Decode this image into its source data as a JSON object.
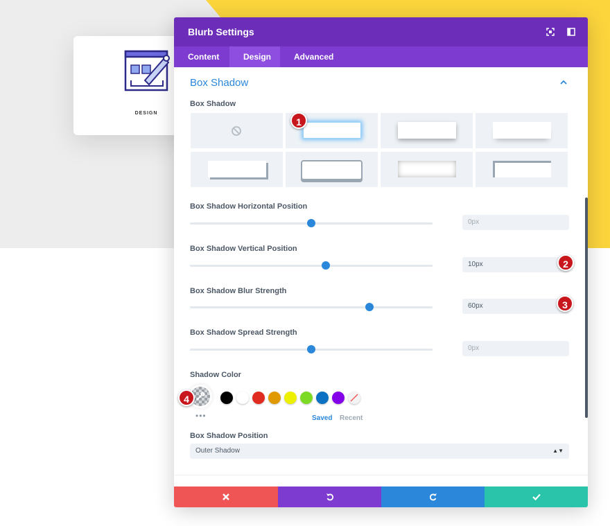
{
  "blurb": {
    "title": "DESIGN",
    "icon": "design-window-pencil-icon"
  },
  "modal": {
    "title": "Blurb Settings",
    "header_icons": [
      "expand-icon",
      "sidebar-layout-icon"
    ],
    "tabs": [
      {
        "label": "Content",
        "active": false
      },
      {
        "label": "Design",
        "active": true
      },
      {
        "label": "Advanced",
        "active": false
      }
    ],
    "section_title": "Box Shadow",
    "box_shadow": {
      "label": "Box Shadow",
      "presets": [
        "none",
        "preset-1",
        "preset-2",
        "preset-3",
        "preset-4",
        "preset-5",
        "preset-6",
        "preset-7"
      ],
      "selected_preset": "preset-1"
    },
    "horizontal": {
      "label": "Box Shadow Horizontal Position",
      "value": "",
      "placeholder": "0px",
      "slider_fraction": 0.5
    },
    "vertical": {
      "label": "Box Shadow Vertical Position",
      "value": "10px",
      "placeholder": "",
      "slider_fraction": 0.56
    },
    "blur": {
      "label": "Box Shadow Blur Strength",
      "value": "60px",
      "placeholder": "",
      "slider_fraction": 0.74
    },
    "spread": {
      "label": "Box Shadow Spread Strength",
      "value": "",
      "placeholder": "0px",
      "slider_fraction": 0.5
    },
    "shadow_color": {
      "label": "Shadow Color",
      "swatches": [
        "#000000",
        "#ffffff",
        "#e02b20",
        "#e09900",
        "#edf000",
        "#7cda24",
        "#0c71c3",
        "#8300e9",
        "transparent"
      ],
      "saved_label": "Saved",
      "recent_label": "Recent",
      "more_label": "•••"
    },
    "position": {
      "label": "Box Shadow Position",
      "value": "Outer Shadow",
      "arrows": "▲▼"
    },
    "footer": {
      "cancel": {
        "icon": "close-icon",
        "color": "#ef5555"
      },
      "undo": {
        "icon": "undo-icon",
        "color": "#7e3bd0"
      },
      "redo": {
        "icon": "redo-icon",
        "color": "#2b87da"
      },
      "save": {
        "icon": "check-icon",
        "color": "#29c4a9"
      }
    }
  },
  "markers": [
    "1",
    "2",
    "3",
    "4"
  ],
  "colors": {
    "header": "#6c2eb9",
    "tabs": "#7e3bd0",
    "accent": "#2b87da",
    "marker": "#c8161d",
    "yellow": "#fcd53d"
  }
}
